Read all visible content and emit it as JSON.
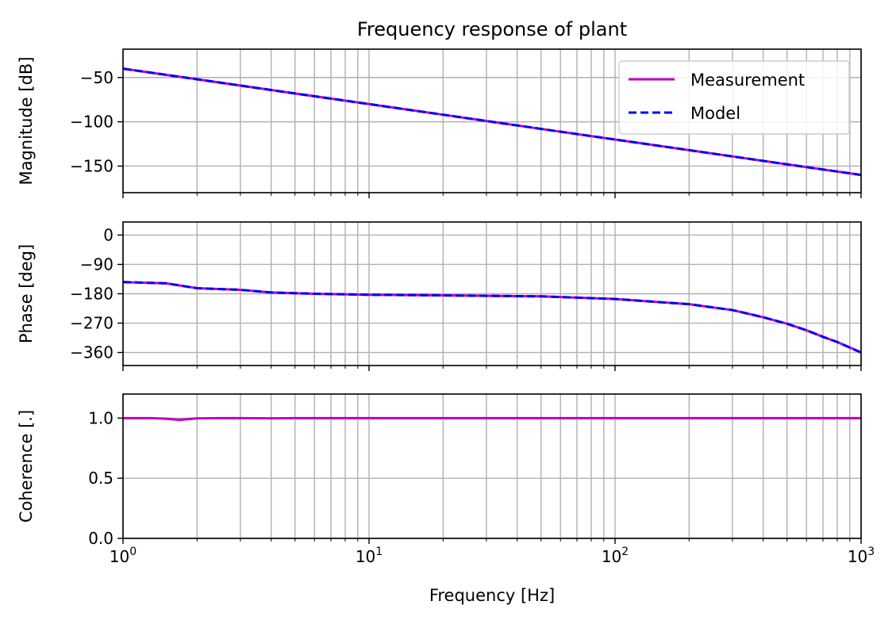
{
  "chart_data": {
    "type": "line",
    "title": "Frequency response of plant",
    "xlabel": "Frequency [Hz]",
    "x_scale": "log",
    "xlim": [
      1,
      1000
    ],
    "x_ticks": [
      {
        "value": 1,
        "base": "10",
        "exp": "0"
      },
      {
        "value": 10,
        "base": "10",
        "exp": "1"
      },
      {
        "value": 100,
        "base": "10",
        "exp": "2"
      },
      {
        "value": 1000,
        "base": "10",
        "exp": "3"
      }
    ],
    "grid": true,
    "colors": {
      "measurement": "#bf00bf",
      "model": "#0000ff",
      "grid": "#b0b0b0",
      "axes": "#000000"
    },
    "legend": {
      "location": "top-right",
      "entries": [
        {
          "label": "Measurement",
          "style": "solid",
          "color": "#bf00bf"
        },
        {
          "label": "Model",
          "style": "dashed",
          "color": "#0000ff"
        }
      ]
    },
    "subplots": [
      {
        "id": "magnitude",
        "ylabel": "Magnitude [dB]",
        "ylim": [
          -180,
          -18
        ],
        "yticks": [
          -50,
          -100,
          -150
        ],
        "ytick_labels": [
          "−50",
          "−100",
          "−150"
        ],
        "series": [
          {
            "name": "Measurement",
            "x": [
              1,
              2,
              5,
              10,
              20,
              50,
              100,
              200,
              500,
              1000
            ],
            "values": [
              -40,
              -52,
              -68,
              -80,
              -92,
              -108,
              -120,
              -132,
              -148,
              -160
            ]
          },
          {
            "name": "Model",
            "x": [
              1,
              2,
              5,
              10,
              20,
              50,
              100,
              200,
              500,
              1000
            ],
            "values": [
              -40,
              -52,
              -68,
              -80,
              -92,
              -108,
              -120,
              -132,
              -148,
              -160
            ]
          }
        ]
      },
      {
        "id": "phase",
        "ylabel": "Phase [deg]",
        "ylim": [
          -400,
          40
        ],
        "yticks": [
          0,
          -90,
          -180,
          -270,
          -360
        ],
        "ytick_labels": [
          "0",
          "−90",
          "−180",
          "−270",
          "−360"
        ],
        "series": [
          {
            "name": "Measurement",
            "x": [
              1,
              1.5,
              2,
              3,
              4,
              6,
              10,
              20,
              50,
              100,
              200,
              300,
              400,
              500,
              600,
              700,
              800,
              1000
            ],
            "values": [
              -144,
              -148,
              -163,
              -168,
              -176,
              -180,
              -183,
              -185,
              -188,
              -196,
              -212,
              -230,
              -252,
              -272,
              -292,
              -312,
              -328,
              -360
            ]
          },
          {
            "name": "Model",
            "x": [
              1,
              1.5,
              2,
              3,
              4,
              6,
              10,
              20,
              50,
              100,
              200,
              300,
              400,
              500,
              600,
              700,
              800,
              1000
            ],
            "values": [
              -144,
              -148,
              -163,
              -168,
              -176,
              -180,
              -183,
              -185,
              -188,
              -196,
              -212,
              -230,
              -252,
              -272,
              -292,
              -312,
              -328,
              -360
            ]
          }
        ]
      },
      {
        "id": "coherence",
        "ylabel": "Coherence [.]",
        "ylim": [
          0,
          1.2
        ],
        "yticks": [
          0,
          0.5,
          1.0
        ],
        "ytick_labels": [
          "0.0",
          "0.5",
          "1.0"
        ],
        "series": [
          {
            "name": "Measurement",
            "x": [
              1,
              1.3,
              1.5,
              1.7,
              2,
              2.5,
              3,
              4,
              5,
              10,
              100,
              1000
            ],
            "values": [
              1.0,
              1.0,
              0.995,
              0.985,
              0.998,
              1.0,
              1.0,
              0.998,
              1.0,
              1.0,
              1.0,
              1.0
            ]
          }
        ]
      }
    ]
  }
}
